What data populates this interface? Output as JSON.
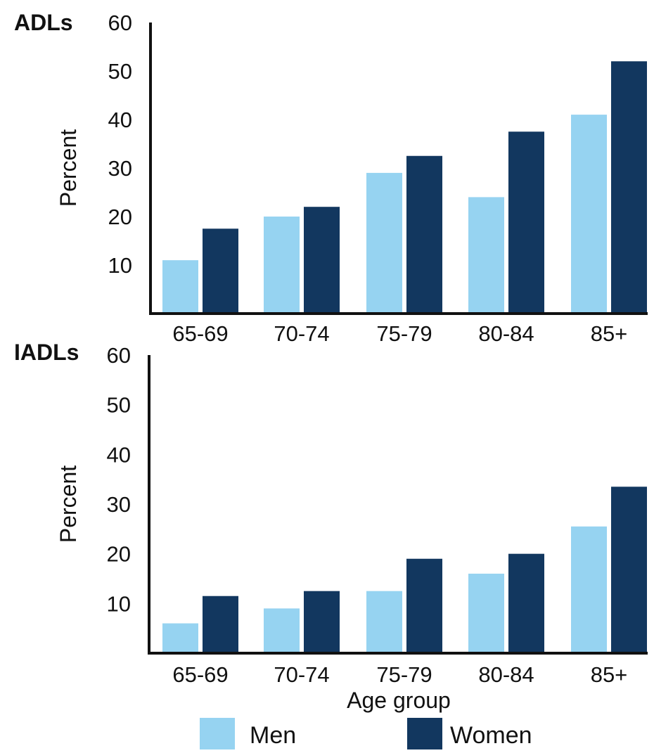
{
  "chart_data": [
    {
      "type": "bar",
      "title": "ADLs",
      "ylabel": "Percent",
      "xlabel": "",
      "ylim": [
        0,
        60
      ],
      "yticks": [
        10,
        20,
        30,
        40,
        50,
        60
      ],
      "categories": [
        "65-69",
        "70-74",
        "75-79",
        "80-84",
        "85+"
      ],
      "series": [
        {
          "name": "Men",
          "values": [
            11,
            20,
            29,
            24,
            41
          ]
        },
        {
          "name": "Women",
          "values": [
            17.5,
            22,
            32.5,
            37.5,
            52
          ]
        }
      ],
      "grid": false
    },
    {
      "type": "bar",
      "title": "IADLs",
      "ylabel": "Percent",
      "xlabel": "Age group",
      "ylim": [
        0,
        60
      ],
      "yticks": [
        10,
        20,
        30,
        40,
        50,
        60
      ],
      "categories": [
        "65-69",
        "70-74",
        "75-79",
        "80-84",
        "85+"
      ],
      "series": [
        {
          "name": "Men",
          "values": [
            6,
            9,
            12.5,
            16,
            25.5
          ]
        },
        {
          "name": "Women",
          "values": [
            11.5,
            12.5,
            19,
            20,
            33.5
          ]
        }
      ],
      "grid": false
    }
  ],
  "legend": {
    "placement": "bottom",
    "items": [
      {
        "label": "Men",
        "color": "#96d3f1"
      },
      {
        "label": "Women",
        "color": "#12375f"
      }
    ]
  },
  "colors": {
    "men": "#96d3f1",
    "women": "#12375f",
    "axis": "#111111"
  }
}
